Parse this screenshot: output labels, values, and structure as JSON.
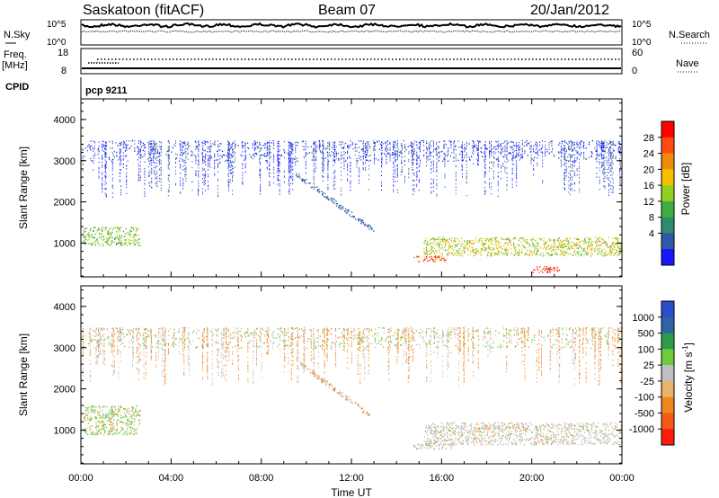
{
  "header": {
    "station": "Saskatoon (fitACF)",
    "beam": "Beam 07",
    "date": "20/Jan/2012"
  },
  "labels": {
    "nsky": "N.Sky",
    "nsearch": "N.Search",
    "freq": "Freq.",
    "mhz": "[MHz]",
    "nave": "Nave",
    "cpid": "CPID",
    "cpid_value": "pcp 9211"
  },
  "noise_panel": {
    "left_ticks": [
      "10^5",
      "10^0"
    ],
    "right_ticks": [
      "10^5",
      "10^0"
    ]
  },
  "freq_panel": {
    "left_ticks": [
      "18",
      "8"
    ],
    "right_ticks": [
      "60",
      "0"
    ]
  },
  "power_colorbar": {
    "title": "Power [dB]",
    "ticks": [
      "28",
      "24",
      "20",
      "16",
      "12",
      "8",
      "4"
    ],
    "colors": [
      "#ff0000",
      "#ff4a12",
      "#f08a0a",
      "#f5c000",
      "#90d020",
      "#3fb040",
      "#2f8a6e",
      "#2c5aa8",
      "#1418ff"
    ]
  },
  "velocity_colorbar": {
    "title": "Velocity [m s",
    "title_sup": "-1",
    "title_end": "]",
    "ticks": [
      "1000",
      "500",
      "100",
      "25",
      "-25",
      "-100",
      "-500",
      "-1000"
    ],
    "colors": [
      "#2c4cc8",
      "#2f63a8",
      "#2f9a4e",
      "#6ccc3a",
      "#bfbfbf",
      "#e8b46a",
      "#f0861e",
      "#f25c14",
      "#ff1a0a"
    ]
  },
  "chart_data": [
    {
      "type": "heatmap",
      "panel": "power",
      "ylabel": "Slant Range [km]",
      "xlabel": "Time UT",
      "x_ticks": [
        "00:00",
        "04:00",
        "08:00",
        "12:00",
        "16:00",
        "20:00",
        "00:00"
      ],
      "y_ticks": [
        1000,
        2000,
        3000,
        4000
      ],
      "xlim_hours": [
        0,
        24
      ],
      "ylim_km": [
        180,
        4500
      ],
      "regions": [
        {
          "x": [
            0.1,
            2.6
          ],
          "y": [
            950,
            1400
          ],
          "level": 0.45
        },
        {
          "x": [
            15.2,
            24
          ],
          "y": [
            700,
            1150
          ],
          "level": 0.55
        },
        {
          "x": [
            14.7,
            16.2
          ],
          "y": [
            550,
            700
          ],
          "level": 0.85
        },
        {
          "x": [
            20.0,
            21.3
          ],
          "y": [
            300,
            450
          ],
          "level": 0.95
        },
        {
          "x": [
            0,
            24
          ],
          "y": [
            3000,
            3500
          ],
          "level": 0.05
        }
      ]
    },
    {
      "type": "heatmap",
      "panel": "velocity",
      "ylabel": "Slant Range [km]",
      "xlabel": "Time UT",
      "x_ticks": [
        "00:00",
        "04:00",
        "08:00",
        "12:00",
        "16:00",
        "20:00",
        "00:00"
      ],
      "y_ticks": [
        1000,
        2000,
        3000,
        4000
      ],
      "xlim_hours": [
        0,
        24
      ],
      "ylim_km": [
        180,
        4500
      ],
      "regions": [
        {
          "x": [
            0.1,
            2.6
          ],
          "y": [
            900,
            1600
          ],
          "level": 0.35
        },
        {
          "x": [
            15.2,
            24
          ],
          "y": [
            650,
            1200
          ],
          "level": 0.5
        },
        {
          "x": [
            14.7,
            16.5
          ],
          "y": [
            550,
            700
          ],
          "level": 0.5
        },
        {
          "x": [
            0,
            24
          ],
          "y": [
            3000,
            3500
          ],
          "level": 0.6
        }
      ]
    }
  ]
}
